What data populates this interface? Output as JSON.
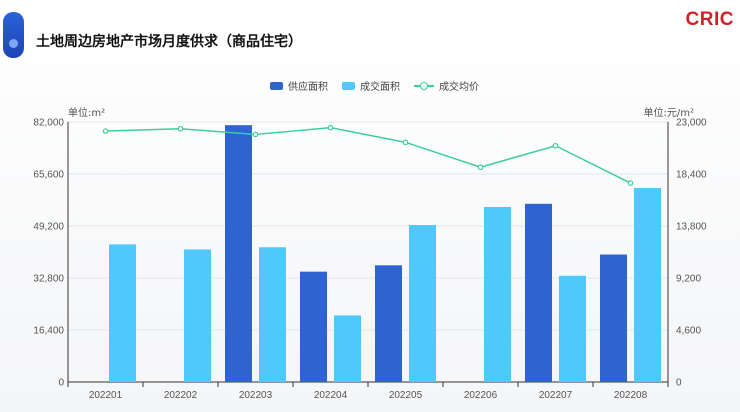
{
  "title": "土地周边房地产市场月度供求（商品住宅）",
  "logo": "CRIC",
  "units": {
    "left": "单位:m²",
    "right": "单位:元/m²"
  },
  "colors": {
    "supply": "#2f63cf",
    "deal": "#4fc9fb",
    "price": "#3dcf96",
    "brand": "#d5202a"
  },
  "chart_data": {
    "type": "bar",
    "categories": [
      "202201",
      "202202",
      "202203",
      "202204",
      "202205",
      "202206",
      "202207",
      "202208"
    ],
    "series": [
      {
        "name": "供应面积",
        "type": "bar",
        "axis": "left",
        "values": [
          null,
          null,
          81000,
          34800,
          36800,
          null,
          56200,
          40200
        ]
      },
      {
        "name": "成交面积",
        "type": "bar",
        "axis": "left",
        "values": [
          43400,
          41800,
          42500,
          21000,
          49500,
          55200,
          33500,
          61200
        ]
      },
      {
        "name": "成交均价",
        "type": "line",
        "axis": "right",
        "values": [
          22200,
          22400,
          21900,
          22500,
          21200,
          19000,
          20900,
          17600
        ]
      }
    ],
    "y_left": {
      "min": 0,
      "max": 82000,
      "ticks": [
        "0",
        "16,400",
        "32,800",
        "49,200",
        "65,600",
        "82,000"
      ]
    },
    "y_right": {
      "min": 0,
      "max": 23000,
      "ticks": [
        "0",
        "4,600",
        "9,200",
        "13,800",
        "18,400",
        "23,000"
      ]
    },
    "legend_position": "top-center"
  }
}
